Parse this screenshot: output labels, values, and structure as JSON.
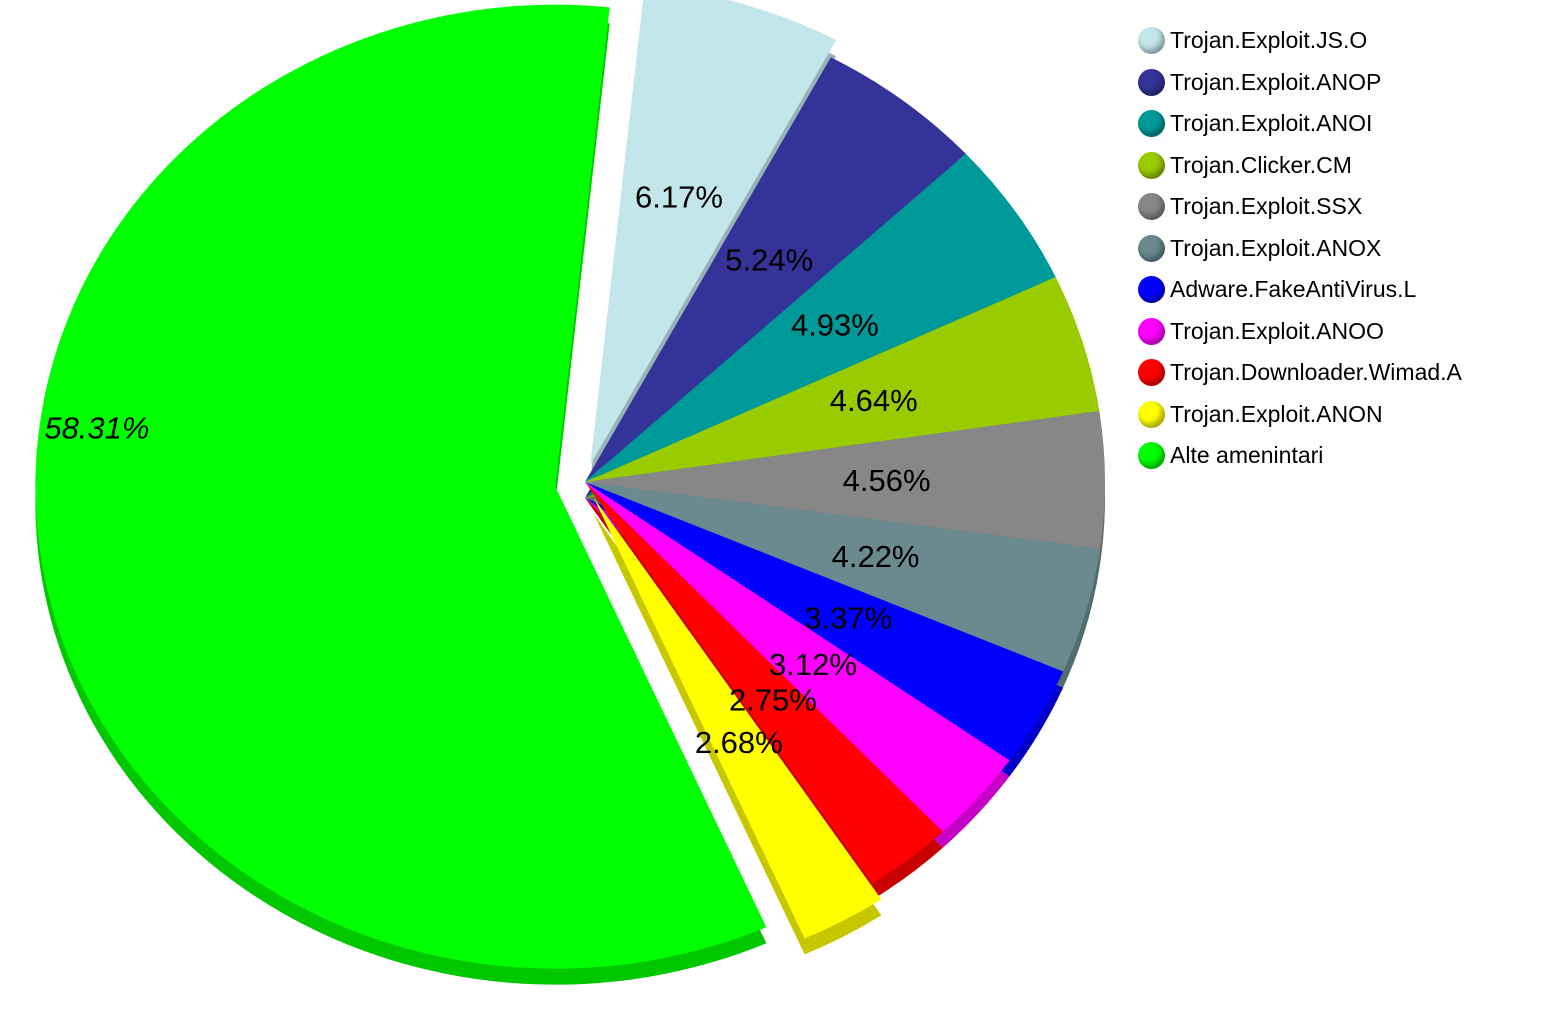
{
  "chart_data": {
    "type": "pie",
    "legend_position": "top-right",
    "slices": [
      {
        "name": "Trojan.Exploit.JS.O",
        "value": 6.17,
        "label": "6.17%",
        "color": "#c3e6ea"
      },
      {
        "name": "Trojan.Exploit.ANOP",
        "value": 5.24,
        "label": "5.24%",
        "color": "#333399"
      },
      {
        "name": "Trojan.Exploit.ANOI",
        "value": 4.93,
        "label": "4.93%",
        "color": "#009999"
      },
      {
        "name": "Trojan.Clicker.CM",
        "value": 4.64,
        "label": "4.64%",
        "color": "#99cc00"
      },
      {
        "name": "Trojan.Exploit.SSX",
        "value": 4.56,
        "label": "4.56%",
        "color": "#878787"
      },
      {
        "name": "Trojan.Exploit.ANOX",
        "value": 4.22,
        "label": "4.22%",
        "color": "#6a8a90"
      },
      {
        "name": "Adware.FakeAntiVirus.L",
        "value": 3.37,
        "label": "3.37%",
        "color": "#0000ff"
      },
      {
        "name": "Trojan.Exploit.ANOO",
        "value": 3.12,
        "label": "3.12%",
        "color": "#ff00ff"
      },
      {
        "name": "Trojan.Downloader.Wimad.A",
        "value": 2.75,
        "label": "2.75%",
        "color": "#ff0000"
      },
      {
        "name": "Trojan.Exploit.ANON",
        "value": 2.68,
        "label": "2.68%",
        "color": "#ffff00"
      },
      {
        "name": "Alte amenintari",
        "value": 58.31,
        "label": "58.31%",
        "color": "#00ff00"
      }
    ]
  }
}
